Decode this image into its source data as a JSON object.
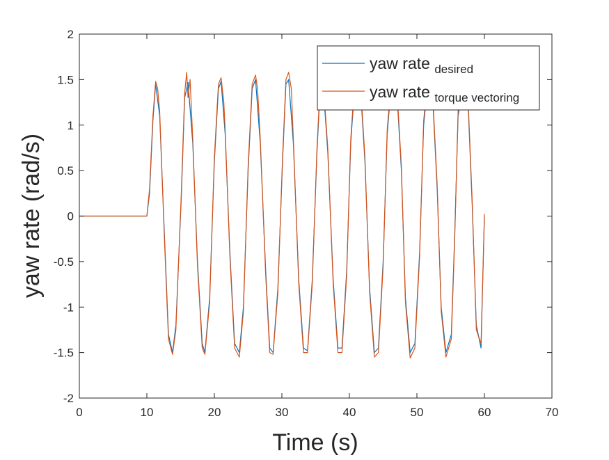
{
  "chart_data": {
    "type": "line",
    "title": "",
    "xlabel": "Time (s)",
    "ylabel": "yaw rate (rad/s)",
    "xlim": [
      0,
      70
    ],
    "ylim": [
      -2,
      2
    ],
    "xticks": [
      0,
      10,
      20,
      30,
      40,
      50,
      60,
      70
    ],
    "yticks": [
      -2,
      -1.5,
      -1,
      -0.5,
      0,
      0.5,
      1,
      1.5,
      2
    ],
    "xtick_labels": [
      "0",
      "10",
      "20",
      "30",
      "40",
      "50",
      "60",
      "70"
    ],
    "ytick_labels": [
      "-2",
      "-1.5",
      "-1",
      "-0.5",
      "0",
      "0.5",
      "1",
      "1.5",
      "2"
    ],
    "grid": false,
    "legend": {
      "placement": "top-right",
      "entries": [
        {
          "text": "yaw rate",
          "subscript": "desired",
          "color": "#0072BD"
        },
        {
          "text": "yaw rate",
          "subscript": "torque vectoring",
          "color": "#D95319"
        }
      ]
    },
    "series": [
      {
        "name": "yaw rate desired",
        "color": "#0072BD",
        "x": [
          0,
          5,
          10,
          10.4,
          10.9,
          11.3,
          11.9,
          12.6,
          13.2,
          13.8,
          14.3,
          15.1,
          15.6,
          16.1,
          16.8,
          17.5,
          18.2,
          18.6,
          19.3,
          20.0,
          20.6,
          21.0,
          21.6,
          22.3,
          23.0,
          23.7,
          24.3,
          25.0,
          25.6,
          26.1,
          26.8,
          27.6,
          28.2,
          28.7,
          29.4,
          30.1,
          30.6,
          31.0,
          31.7,
          32.5,
          33.2,
          33.8,
          34.5,
          35.2,
          35.7,
          36.1,
          36.8,
          37.6,
          38.3,
          38.9,
          39.6,
          40.2,
          40.8,
          41.6,
          42.3,
          43.0,
          43.7,
          44.3,
          45.0,
          45.6,
          46.2,
          47.0,
          47.7,
          48.3,
          49.0,
          49.7,
          50.4,
          51.0,
          51.6,
          52.3,
          53.0,
          53.6,
          54.3,
          55.1,
          55.6,
          56.1,
          56.9,
          57.6,
          58.2,
          58.8,
          59.5,
          60.0
        ],
        "y": [
          0,
          0,
          0,
          0.25,
          1.05,
          1.45,
          1.1,
          -0.2,
          -1.3,
          -1.5,
          -1.2,
          0.2,
          1.3,
          1.47,
          0.8,
          -0.5,
          -1.4,
          -1.5,
          -0.9,
          0.6,
          1.4,
          1.48,
          0.9,
          -0.4,
          -1.4,
          -1.5,
          -1.0,
          0.5,
          1.4,
          1.5,
          0.8,
          -0.6,
          -1.45,
          -1.5,
          -0.8,
          0.6,
          1.45,
          1.5,
          0.8,
          -0.7,
          -1.45,
          -1.48,
          -0.7,
          0.7,
          1.45,
          1.45,
          0.7,
          -0.7,
          -1.45,
          -1.45,
          -0.6,
          0.8,
          1.45,
          1.45,
          0.6,
          -0.8,
          -1.5,
          -1.45,
          -0.5,
          0.9,
          1.45,
          1.4,
          0.5,
          -0.9,
          -1.5,
          -1.4,
          -0.4,
          1.0,
          1.45,
          1.35,
          0.3,
          -1.0,
          -1.5,
          -1.3,
          -0.2,
          1.1,
          1.45,
          1.2,
          0.1,
          -1.2,
          -1.45,
          0.0
        ]
      },
      {
        "name": "yaw rate torque vectoring",
        "color": "#D95319",
        "x": [
          0,
          5,
          10,
          10.4,
          10.9,
          11.3,
          11.6,
          11.9,
          12.6,
          13.2,
          13.8,
          14.3,
          15.1,
          15.6,
          15.9,
          16.1,
          16.4,
          16.8,
          17.5,
          18.2,
          18.6,
          19.3,
          20.0,
          20.6,
          21.0,
          21.4,
          21.6,
          22.3,
          23.0,
          23.7,
          24.3,
          25.0,
          25.6,
          26.1,
          26.4,
          26.8,
          27.6,
          28.2,
          28.7,
          29.4,
          30.1,
          30.6,
          31.0,
          31.4,
          31.7,
          32.5,
          33.2,
          33.8,
          34.5,
          35.2,
          35.7,
          36.1,
          36.8,
          37.6,
          38.3,
          38.9,
          39.6,
          40.2,
          40.8,
          41.6,
          42.3,
          43.0,
          43.7,
          44.3,
          45.0,
          45.6,
          46.2,
          47.0,
          47.7,
          48.3,
          49.0,
          49.7,
          50.4,
          51.0,
          51.6,
          52.3,
          53.0,
          53.6,
          54.3,
          55.1,
          55.6,
          56.1,
          56.9,
          57.6,
          58.2,
          58.8,
          59.5,
          60.0
        ],
        "y": [
          0,
          0,
          0,
          0.3,
          1.1,
          1.48,
          1.4,
          1.15,
          -0.25,
          -1.35,
          -1.52,
          -1.25,
          0.25,
          1.35,
          1.58,
          1.3,
          1.5,
          0.85,
          -0.55,
          -1.45,
          -1.52,
          -0.95,
          0.65,
          1.45,
          1.52,
          1.25,
          0.95,
          -0.45,
          -1.45,
          -1.55,
          -1.05,
          0.55,
          1.45,
          1.55,
          1.4,
          0.85,
          -0.65,
          -1.5,
          -1.52,
          -0.85,
          0.65,
          1.5,
          1.58,
          1.4,
          0.85,
          -0.75,
          -1.5,
          -1.5,
          -0.75,
          0.75,
          1.5,
          1.5,
          0.75,
          -0.75,
          -1.5,
          -1.5,
          -0.65,
          0.85,
          1.5,
          1.5,
          0.65,
          -0.85,
          -1.55,
          -1.5,
          -0.55,
          0.95,
          1.5,
          1.45,
          0.55,
          -0.95,
          -1.56,
          -1.45,
          -0.45,
          1.05,
          1.5,
          1.4,
          0.35,
          -1.05,
          -1.55,
          -1.35,
          -0.25,
          1.15,
          1.5,
          1.25,
          0.15,
          -1.25,
          -1.4,
          0.02
        ]
      }
    ]
  }
}
